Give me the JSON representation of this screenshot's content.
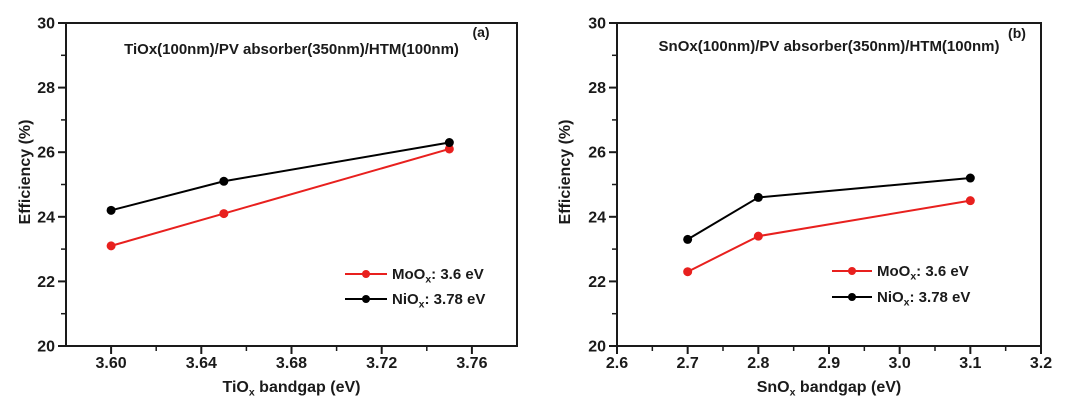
{
  "figure": {
    "background": "#ffffff",
    "ink_color": "#1a1a1a",
    "description": "Two-panel line chart of solar cell efficiency versus ETL bandgap"
  },
  "chart_data": [
    {
      "type": "line",
      "panel_label": "(a)",
      "title": "TiOx(100nm)/PV absorber(350nm)/HTM(100nm)",
      "ylabel": "Efficiency (%)",
      "xlabel": {
        "pre": "TiO",
        "sub": "x",
        "post": " bandgap (eV)"
      },
      "xlim": [
        3.58,
        3.78
      ],
      "ylim": [
        20,
        30
      ],
      "x_major_ticks": [
        3.6,
        3.64,
        3.68,
        3.72,
        3.76
      ],
      "x_tick_labels": [
        "3.60",
        "3.64",
        "3.68",
        "3.72",
        "3.76"
      ],
      "x_minor_ticks": [
        3.62,
        3.66,
        3.7,
        3.74
      ],
      "y_major_ticks": [
        20,
        22,
        24,
        26,
        28,
        30
      ],
      "y_tick_labels": [
        "20",
        "22",
        "24",
        "26",
        "28",
        "30"
      ],
      "y_minor_ticks": [
        21,
        23,
        25,
        27,
        29
      ],
      "grid": false,
      "legend_position": "lower-right",
      "series": [
        {
          "id": "MoOx",
          "label": {
            "pre": "MoO",
            "sub": "x",
            "post": ": 3.6 eV"
          },
          "color": "#e8201e",
          "marker": "circle",
          "x": [
            3.6,
            3.65,
            3.75
          ],
          "y": [
            23.1,
            24.1,
            26.1
          ]
        },
        {
          "id": "NiOx",
          "label": {
            "pre": "NiO",
            "sub": "x",
            "post": ": 3.78 eV"
          },
          "color": "#000000",
          "marker": "circle",
          "x": [
            3.6,
            3.65,
            3.75
          ],
          "y": [
            24.2,
            25.1,
            26.3
          ]
        }
      ]
    },
    {
      "type": "line",
      "panel_label": "(b)",
      "title": "SnOx(100nm)/PV absorber(350nm)/HTM(100nm)",
      "ylabel": "Efficiency (%)",
      "xlabel": {
        "pre": "SnO",
        "sub": "x",
        "post": " bandgap (eV)"
      },
      "xlim": [
        2.6,
        3.2
      ],
      "ylim": [
        20,
        30
      ],
      "x_major_ticks": [
        2.6,
        2.7,
        2.8,
        2.9,
        3.0,
        3.1,
        3.2
      ],
      "x_tick_labels": [
        "2.6",
        "2.7",
        "2.8",
        "2.9",
        "3.0",
        "3.1",
        "3.2"
      ],
      "x_minor_ticks": [
        2.65,
        2.75,
        2.85,
        2.95,
        3.05,
        3.15
      ],
      "y_major_ticks": [
        20,
        22,
        24,
        26,
        28,
        30
      ],
      "y_tick_labels": [
        "20",
        "22",
        "24",
        "26",
        "28",
        "30"
      ],
      "y_minor_ticks": [
        21,
        23,
        25,
        27,
        29
      ],
      "grid": false,
      "legend_position": "lower-right",
      "series": [
        {
          "id": "MoOx",
          "label": {
            "pre": "MoO",
            "sub": "x",
            "post": ": 3.6 eV"
          },
          "color": "#e8201e",
          "marker": "circle",
          "x": [
            2.7,
            2.8,
            3.1
          ],
          "y": [
            22.3,
            23.4,
            24.5
          ]
        },
        {
          "id": "NiOx",
          "label": {
            "pre": "NiO",
            "sub": "x",
            "post": ": 3.78 eV"
          },
          "color": "#000000",
          "marker": "circle",
          "x": [
            2.7,
            2.8,
            3.1
          ],
          "y": [
            23.3,
            24.6,
            25.2
          ]
        }
      ]
    }
  ]
}
